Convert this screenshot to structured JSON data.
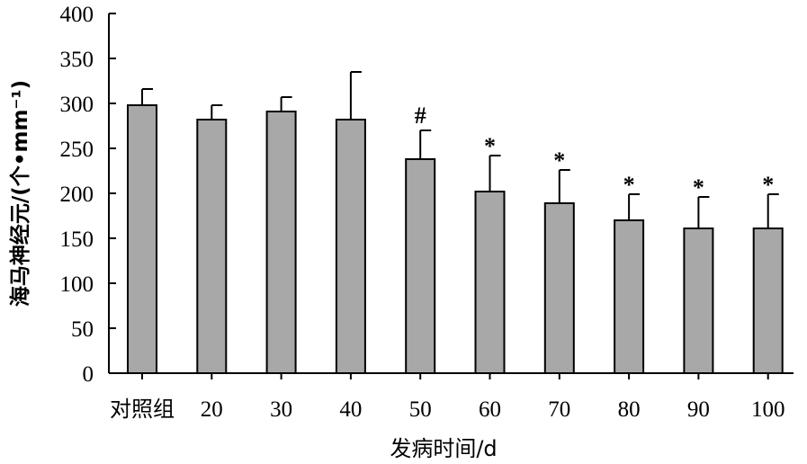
{
  "chart_data": {
    "type": "bar",
    "categories": [
      "对照组",
      "20",
      "30",
      "40",
      "50",
      "60",
      "70",
      "80",
      "90",
      "100"
    ],
    "values": [
      298,
      282,
      291,
      282,
      238,
      202,
      189,
      170,
      161,
      161
    ],
    "error_upper": [
      316,
      298,
      307,
      335,
      270,
      242,
      226,
      199,
      196,
      199
    ],
    "annotations": [
      "",
      "",
      "",
      "",
      "#",
      "*",
      "*",
      "*",
      "*",
      "*"
    ],
    "xlabel": "发病时间/d",
    "ylabel": "海马神经元/(个•mm⁻¹)",
    "ylim": [
      0,
      400
    ],
    "yticks": [
      0,
      50,
      100,
      150,
      200,
      250,
      300,
      350,
      400
    ],
    "grid": false,
    "bar_color": "#a8a8a8",
    "edge_color": "#000000"
  }
}
